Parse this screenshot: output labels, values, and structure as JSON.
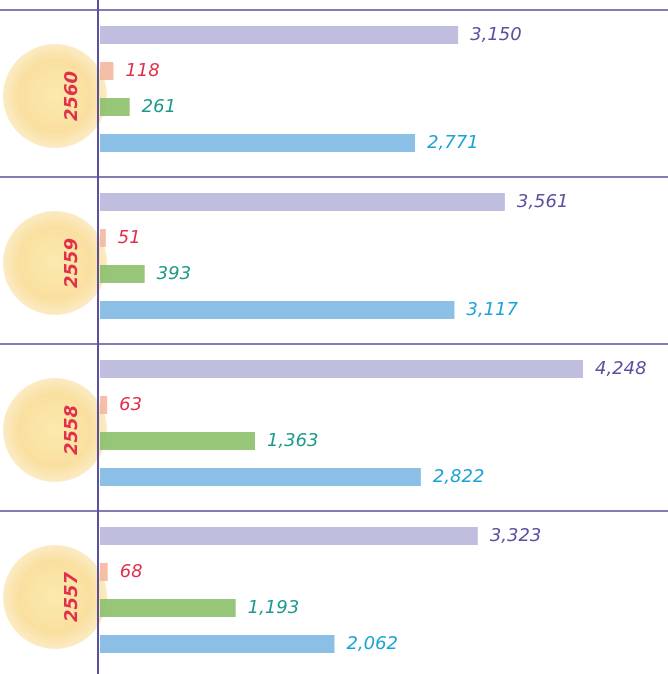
{
  "chart_data": {
    "type": "hbar",
    "categories": [
      "2560",
      "2559",
      "2558",
      "2557"
    ],
    "series": [
      {
        "color": "#b9b7dc",
        "values": [
          3150,
          3561,
          4248,
          3323
        ],
        "value_labels": [
          "3,150",
          "3,561",
          "4,248",
          "3,323"
        ]
      },
      {
        "color": "#f4b7a0",
        "values": [
          118,
          51,
          63,
          68
        ],
        "value_labels": [
          "118",
          "51",
          "63",
          "68"
        ]
      },
      {
        "color": "#8cc06a",
        "values": [
          261,
          393,
          1363,
          1193
        ],
        "value_labels": [
          "261",
          "393",
          "1,363",
          "1,193"
        ]
      },
      {
        "color": "#7fb8e2",
        "values": [
          2771,
          3117,
          2822,
          2062
        ],
        "value_labels": [
          "2,771",
          "3,117",
          "2,822",
          "2,062"
        ]
      }
    ]
  }
}
